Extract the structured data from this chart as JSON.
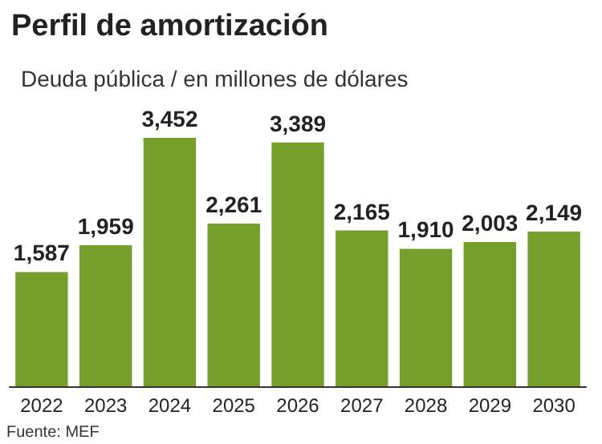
{
  "chart_data": {
    "type": "bar",
    "title": "Perfil de amortización",
    "subtitle": "Deuda pública / en millones de dólares",
    "categories": [
      "2022",
      "2023",
      "2024",
      "2025",
      "2026",
      "2027",
      "2028",
      "2029",
      "2030"
    ],
    "values": [
      1587,
      1959,
      3452,
      2261,
      3389,
      2165,
      1910,
      2003,
      2149
    ],
    "value_labels": [
      "1,587",
      "1,959",
      "3,452",
      "2,261",
      "3,389",
      "2,165",
      "1,910",
      "2,003",
      "2,149"
    ],
    "color": "#76a02c",
    "annotations": [
      "Fuente: MEF"
    ]
  }
}
